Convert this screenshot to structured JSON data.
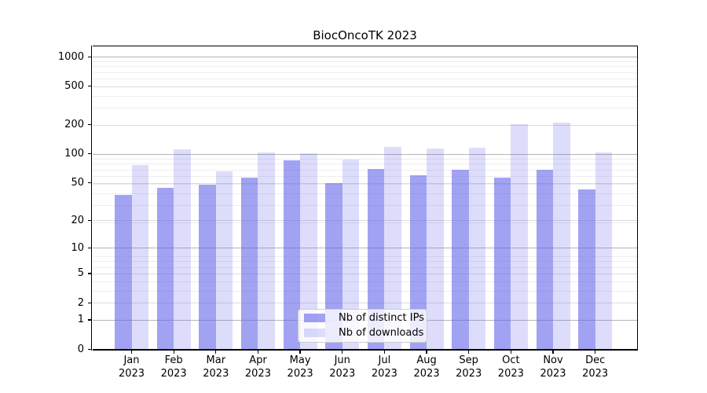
{
  "chart_data": {
    "type": "bar",
    "title": "BiocOncoTK 2023",
    "categories": [
      "Jan",
      "Feb",
      "Mar",
      "Apr",
      "May",
      "Jun",
      "Jul",
      "Aug",
      "Sep",
      "Oct",
      "Nov",
      "Dec"
    ],
    "category_year": "2023",
    "series": [
      {
        "name": "Nb of distinct IPs",
        "color": "rgba(100,100,235,0.60)",
        "values": [
          37,
          44,
          48,
          57,
          86,
          50,
          70,
          60,
          69,
          57,
          68,
          43
        ]
      },
      {
        "name": "Nb of downloads",
        "color": "rgba(100,100,235,0.22)",
        "values": [
          77,
          111,
          66,
          103,
          101,
          87,
          117,
          113,
          115,
          202,
          210,
          104
        ]
      }
    ],
    "y_ticks": [
      0,
      1,
      2,
      5,
      10,
      20,
      50,
      100,
      200,
      500,
      1000
    ],
    "y_scale": "log10(1+value)",
    "ylim": [
      0,
      1000
    ],
    "grid": true,
    "legend_position": "lower center",
    "colors": {
      "major_gridline": "#b5b5b5",
      "labeled_gridline": "#dcdcdc",
      "minor_gridline": "#eeeeee",
      "spine": "#000000",
      "background": "#ffffff"
    }
  }
}
